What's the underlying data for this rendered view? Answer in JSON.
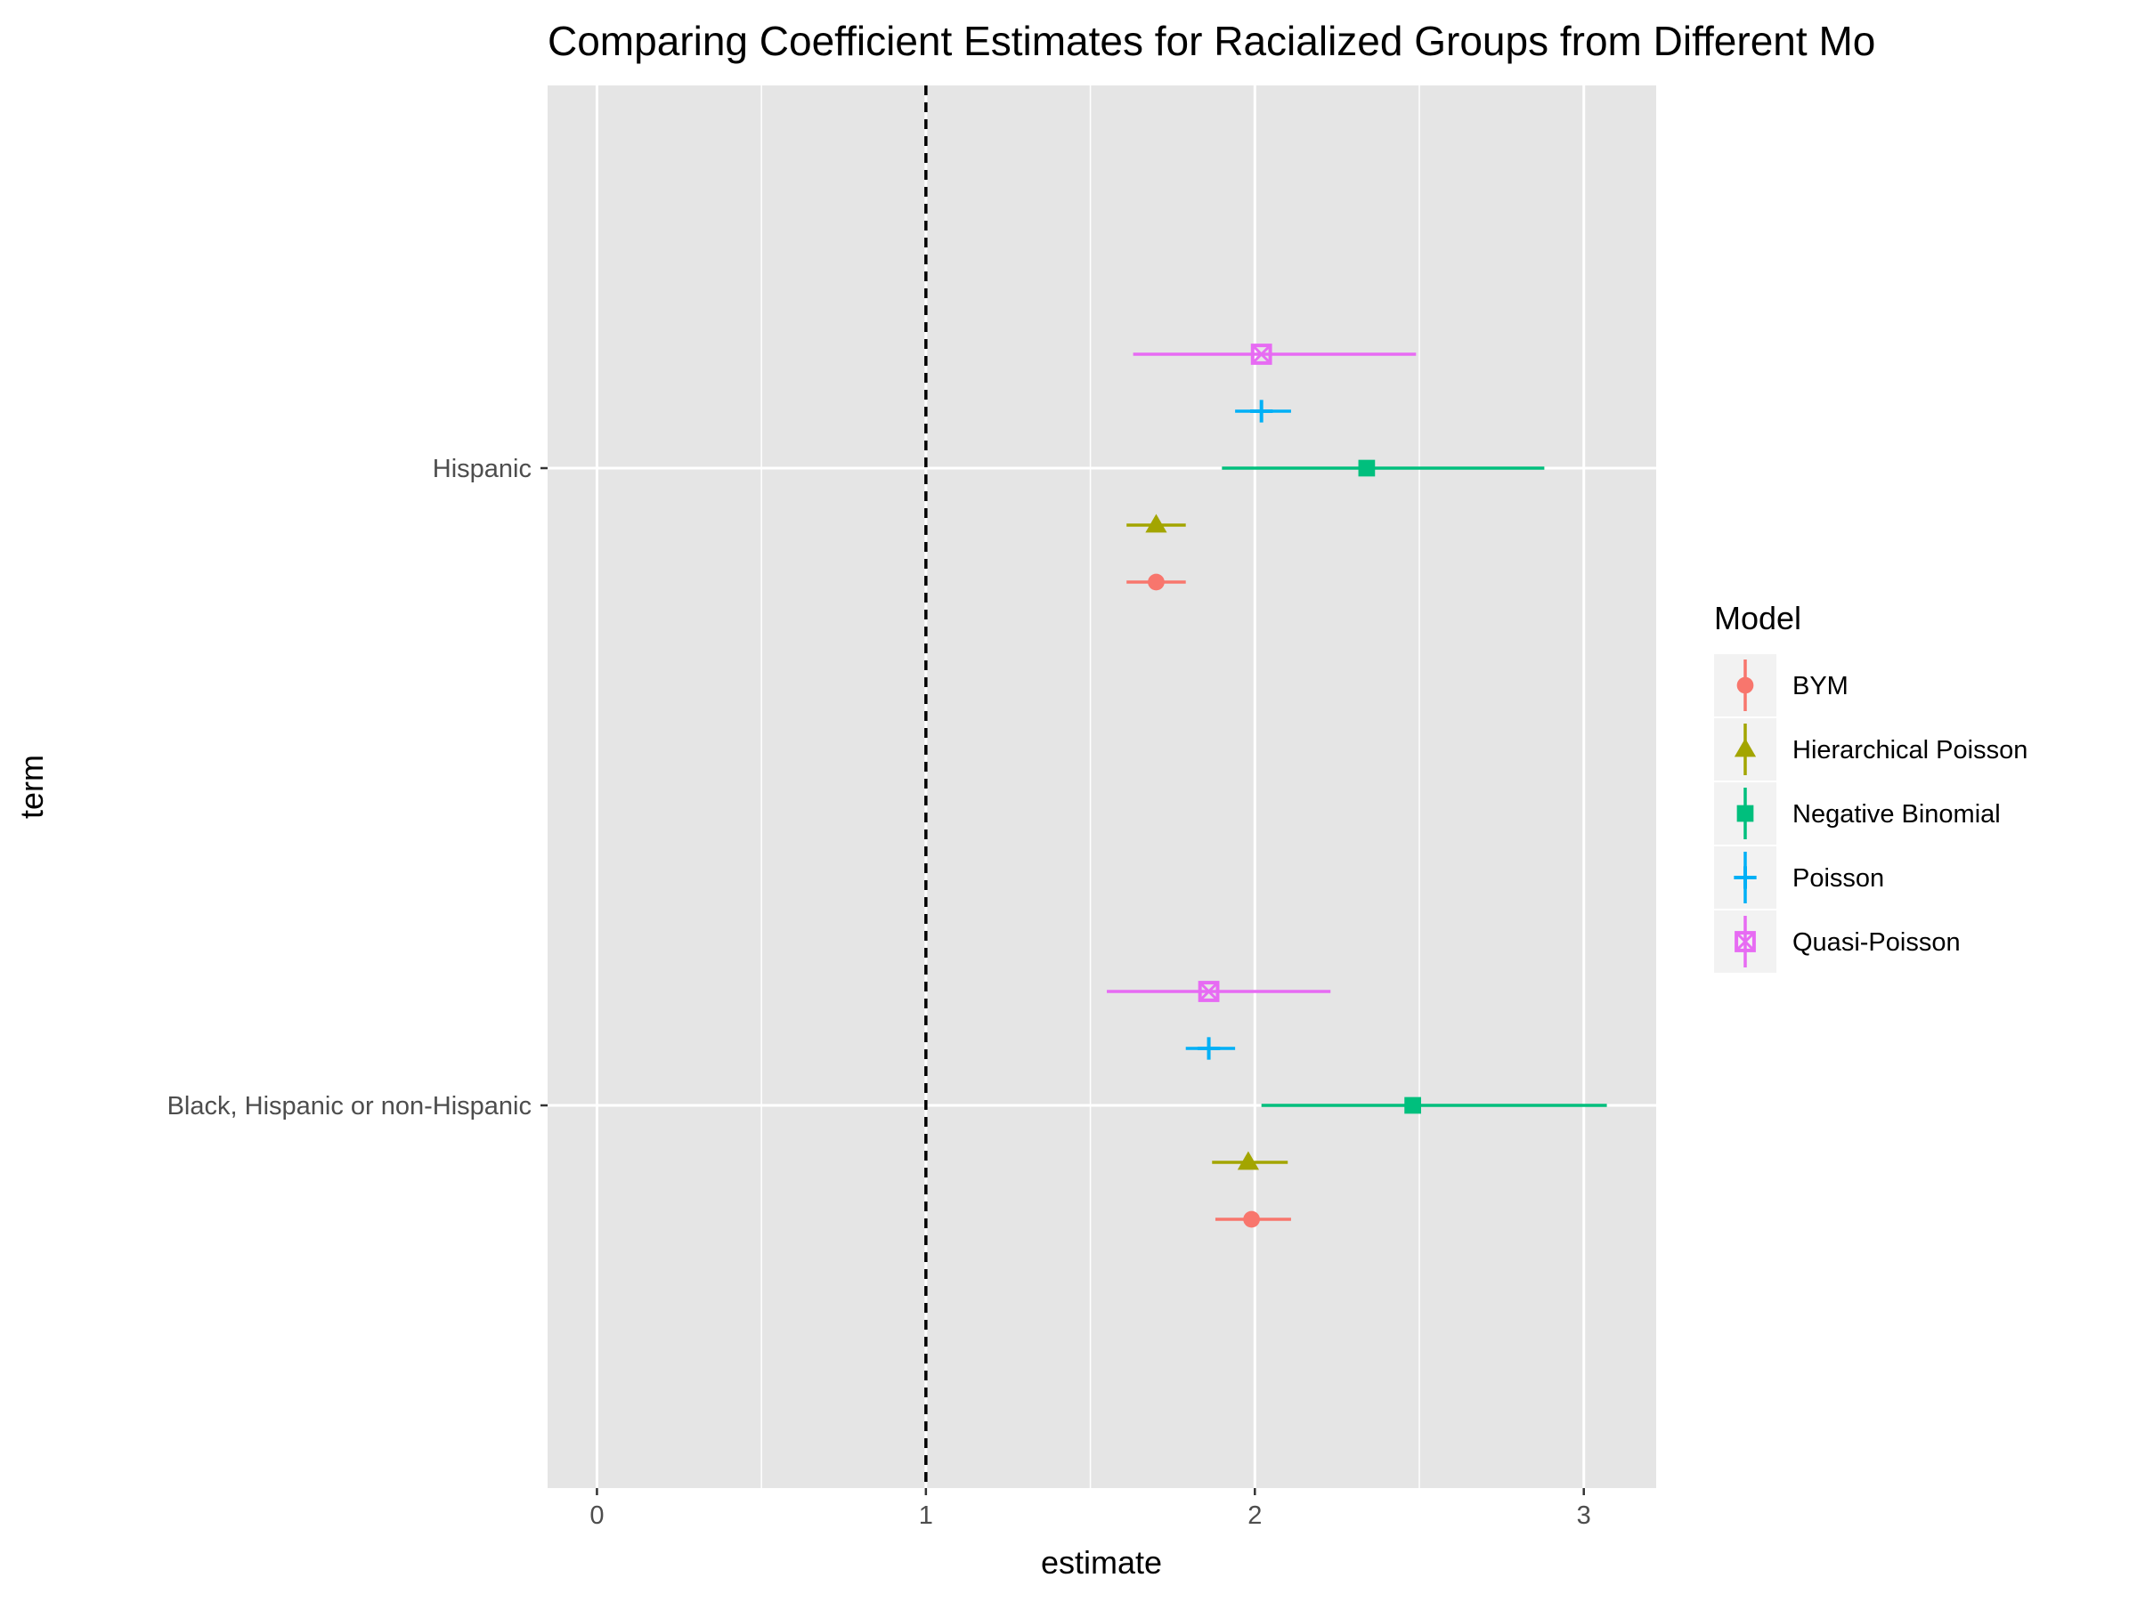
{
  "chart_data": {
    "type": "scatter",
    "title": "Comparing Coefficient Estimates for Racialized Groups from Different Mo",
    "xlabel": "estimate",
    "ylabel": "term",
    "xlim": [
      -0.15,
      3.22
    ],
    "x_ticks": [
      "0",
      "1",
      "2",
      "3"
    ],
    "x_tick_values": [
      0,
      1,
      2,
      3
    ],
    "categories": [
      "Hispanic",
      "Black, Hispanic or non-Hispanic"
    ],
    "reference_line": {
      "x": 1,
      "style": "dashed",
      "color": "#000000"
    },
    "grid": true,
    "legend": {
      "title": "Model",
      "placement": "right"
    },
    "series": [
      {
        "name": "BYM",
        "color": "#F8766D",
        "shape": "circle",
        "points": [
          {
            "term": "Hispanic",
            "estimate": 1.7,
            "low": 1.61,
            "high": 1.79
          },
          {
            "term": "Black, Hispanic or non-Hispanic",
            "estimate": 1.99,
            "low": 1.88,
            "high": 2.11
          }
        ]
      },
      {
        "name": "Hierarchical Poisson",
        "color": "#A3A500",
        "shape": "triangle",
        "points": [
          {
            "term": "Hispanic",
            "estimate": 1.7,
            "low": 1.61,
            "high": 1.79
          },
          {
            "term": "Black, Hispanic or non-Hispanic",
            "estimate": 1.98,
            "low": 1.87,
            "high": 2.1
          }
        ]
      },
      {
        "name": "Negative Binomial",
        "color": "#00BF7D",
        "shape": "square",
        "points": [
          {
            "term": "Hispanic",
            "estimate": 2.34,
            "low": 1.9,
            "high": 2.88
          },
          {
            "term": "Black, Hispanic or non-Hispanic",
            "estimate": 2.48,
            "low": 2.02,
            "high": 3.07
          }
        ]
      },
      {
        "name": "Poisson",
        "color": "#00B0F6",
        "shape": "plus",
        "points": [
          {
            "term": "Hispanic",
            "estimate": 2.02,
            "low": 1.94,
            "high": 2.11
          },
          {
            "term": "Black, Hispanic or non-Hispanic",
            "estimate": 1.86,
            "low": 1.79,
            "high": 1.94
          }
        ]
      },
      {
        "name": "Quasi-Poisson",
        "color": "#E76BF3",
        "shape": "square-cross",
        "points": [
          {
            "term": "Hispanic",
            "estimate": 2.02,
            "low": 1.63,
            "high": 2.49
          },
          {
            "term": "Black, Hispanic or non-Hispanic",
            "estimate": 1.86,
            "low": 1.55,
            "high": 2.23
          }
        ]
      }
    ]
  }
}
